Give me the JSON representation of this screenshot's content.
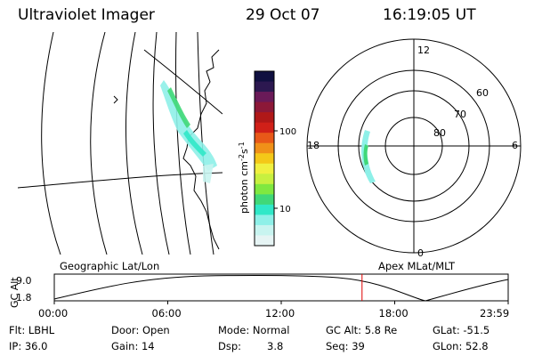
{
  "header": {
    "instrument": "Ultraviolet Imager",
    "date": "29 Oct 07",
    "time": "16:19:05 UT"
  },
  "colorbar": {
    "unit_label": "photon cm",
    "unit_sup1": "-2",
    "unit_mid": "s",
    "unit_sup2": "-1",
    "tick_100": "100",
    "tick_10": "10",
    "colors": [
      "#101040",
      "#2c1850",
      "#6a1a58",
      "#8c1838",
      "#b01818",
      "#d02018",
      "#e85818",
      "#f09018",
      "#f4c818",
      "#f0f040",
      "#c8f040",
      "#80e840",
      "#40d878",
      "#30e8c8",
      "#8ef0e8",
      "#c8f4f0",
      "#e6f4f4"
    ]
  },
  "polar": {
    "labels": {
      "top": "12",
      "left": "18",
      "right": "6",
      "bottom": "0",
      "lat60": "60",
      "lat70": "70",
      "lat80": "80"
    }
  },
  "timeline": {
    "left_title": "Geographic Lat/Lon",
    "right_title": "Apex MLat/MLT",
    "y_axis_label": "GC Alt",
    "y_max": "9.0",
    "y_min": "1.8",
    "x_ticks": [
      "00:00",
      "06:00",
      "12:00",
      "18:00",
      "23:59"
    ],
    "marker_fraction": 0.678
  },
  "status": {
    "flt": "Flt: LBHL",
    "ip": "IP: 36.0",
    "door": "Door: Open",
    "gain": "Gain: 14",
    "mode": "Mode: Normal",
    "dsp_label": "Dsp:",
    "dsp_value": "3.8",
    "gc_alt": "GC Alt: 5.8 Re",
    "seq": "Seq: 39",
    "glat": "GLat: -51.5",
    "glon": "GLon: 52.8"
  }
}
